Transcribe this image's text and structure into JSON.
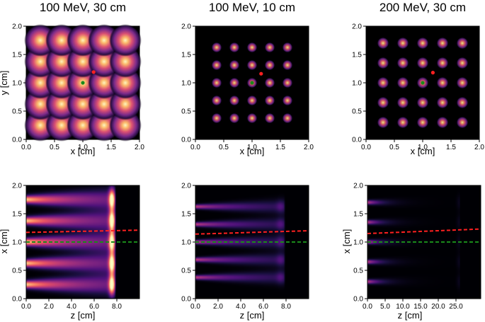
{
  "chart_data": [
    {
      "type": "heatmap",
      "title": "100 MeV, 30 cm",
      "xlabel": "x [cm]",
      "ylabel": "y [cm]",
      "xlim": [
        0,
        2
      ],
      "ylim": [
        0,
        2
      ],
      "xticks": [
        "0.0",
        "0.5",
        "1.0",
        "1.5",
        "2.0"
      ],
      "yticks": [
        "0.0",
        "0.5",
        "1.0",
        "1.5",
        "2.0"
      ],
      "spots": {
        "centers": [
          0.25,
          0.625,
          1.0,
          1.375,
          1.75
        ],
        "sigma": 0.11,
        "peak": 1.0
      },
      "markers": [
        {
          "x": 1.0,
          "y": 1.0,
          "color": "#1a8a1a"
        },
        {
          "x": 1.19,
          "y": 1.19,
          "color": "#ff2020"
        }
      ]
    },
    {
      "type": "heatmap",
      "title": "100 MeV, 10 cm",
      "xlabel": "x [cm]",
      "ylabel": "",
      "xlim": [
        0,
        2
      ],
      "ylim": [
        0,
        2
      ],
      "xticks": [
        "0.0",
        "0.5",
        "1.0",
        "1.5",
        "2.0"
      ],
      "yticks": [
        "0.0",
        "0.5",
        "1.0",
        "1.5",
        "2.0"
      ],
      "spots": {
        "centers": [
          0.375,
          0.6875,
          1.0,
          1.3125,
          1.625
        ],
        "sigma": 0.035,
        "peak": 0.9
      },
      "markers": [
        {
          "x": 1.0,
          "y": 1.0,
          "color": "#1a8a1a"
        },
        {
          "x": 1.16,
          "y": 1.16,
          "color": "#ff2020"
        }
      ]
    },
    {
      "type": "heatmap",
      "title": "200 MeV, 30 cm",
      "xlabel": "x [cm]",
      "ylabel": "",
      "xlim": [
        0,
        2
      ],
      "ylim": [
        0,
        2
      ],
      "xticks": [
        "0.0",
        "0.5",
        "1.0",
        "1.5",
        "2.0"
      ],
      "yticks": [
        "0.0",
        "0.5",
        "1.0",
        "1.5",
        "2.0"
      ],
      "spots": {
        "centers": [
          0.3,
          0.65,
          1.0,
          1.35,
          1.7
        ],
        "sigma": 0.04,
        "peak": 0.9
      },
      "markers": [
        {
          "x": 1.0,
          "y": 1.0,
          "color": "#1a8a1a"
        },
        {
          "x": 1.18,
          "y": 1.18,
          "color": "#ff2020"
        }
      ]
    },
    {
      "type": "heatmap",
      "title": "",
      "xlabel": "z [cm]",
      "ylabel": "x [cm]",
      "xlim": [
        0,
        10
      ],
      "ylim": [
        0,
        2
      ],
      "xticks": [
        "0.0",
        "2.0",
        "4.0",
        "6.0",
        "8.0"
      ],
      "xtick_values": [
        0,
        2,
        4,
        6,
        8
      ],
      "yticks": [
        "0.0",
        "0.5",
        "1.0",
        "1.5",
        "2.0"
      ],
      "beams": {
        "centers": [
          0.25,
          0.625,
          1.0,
          1.375,
          1.75
        ],
        "sigma0": 0.045,
        "spread": 0.085,
        "range": 7.8,
        "peak": 1.0
      },
      "lines": [
        {
          "color": "#ff2020",
          "points": [
            [
              0,
              1.17
            ],
            [
              10,
              1.21
            ]
          ]
        },
        {
          "color": "#1a8a1a",
          "points": [
            [
              0,
              1.0
            ],
            [
              10,
              1.0
            ]
          ]
        }
      ]
    },
    {
      "type": "heatmap",
      "title": "",
      "xlabel": "z [cm]",
      "ylabel": "",
      "xlim": [
        0,
        10
      ],
      "ylim": [
        0,
        2
      ],
      "xticks": [
        "0.0",
        "2.0",
        "4.0",
        "6.0",
        "8.0"
      ],
      "xtick_values": [
        0,
        2,
        4,
        6,
        8
      ],
      "yticks": [
        "0.0",
        "0.5",
        "1.0",
        "1.5",
        "2.0"
      ],
      "beams": {
        "centers": [
          0.375,
          0.6875,
          1.0,
          1.3125,
          1.625
        ],
        "sigma0": 0.025,
        "spread": 0.06,
        "range": 7.8,
        "peak": 0.6
      },
      "lines": [
        {
          "color": "#ff2020",
          "points": [
            [
              0,
              1.14
            ],
            [
              10,
              1.2
            ]
          ]
        },
        {
          "color": "#1a8a1a",
          "points": [
            [
              0,
              1.0
            ],
            [
              10,
              1.0
            ]
          ]
        }
      ]
    },
    {
      "type": "heatmap",
      "title": "",
      "xlabel": "z [cm]",
      "ylabel": "x [cm]",
      "xlim": [
        0,
        32
      ],
      "ylim": [
        0,
        2
      ],
      "xticks": [
        "0.0",
        "5.0",
        "10.0",
        "15.0",
        "20.0",
        "25.0"
      ],
      "xtick_values": [
        0,
        5,
        10,
        15,
        20,
        25
      ],
      "yticks": [
        "0.0",
        "0.5",
        "1.0",
        "1.5",
        "2.0"
      ],
      "beams": {
        "centers": [
          0.3,
          0.65,
          1.0,
          1.35,
          1.7
        ],
        "sigma0": 0.025,
        "spread": 0.07,
        "range": 26,
        "peak": 0.55,
        "fast": true
      },
      "lines": [
        {
          "color": "#ff2020",
          "points": [
            [
              0,
              1.15
            ],
            [
              32,
              1.23
            ]
          ]
        },
        {
          "color": "#1a8a1a",
          "points": [
            [
              0,
              1.0
            ],
            [
              32,
              1.0
            ]
          ]
        }
      ]
    }
  ]
}
